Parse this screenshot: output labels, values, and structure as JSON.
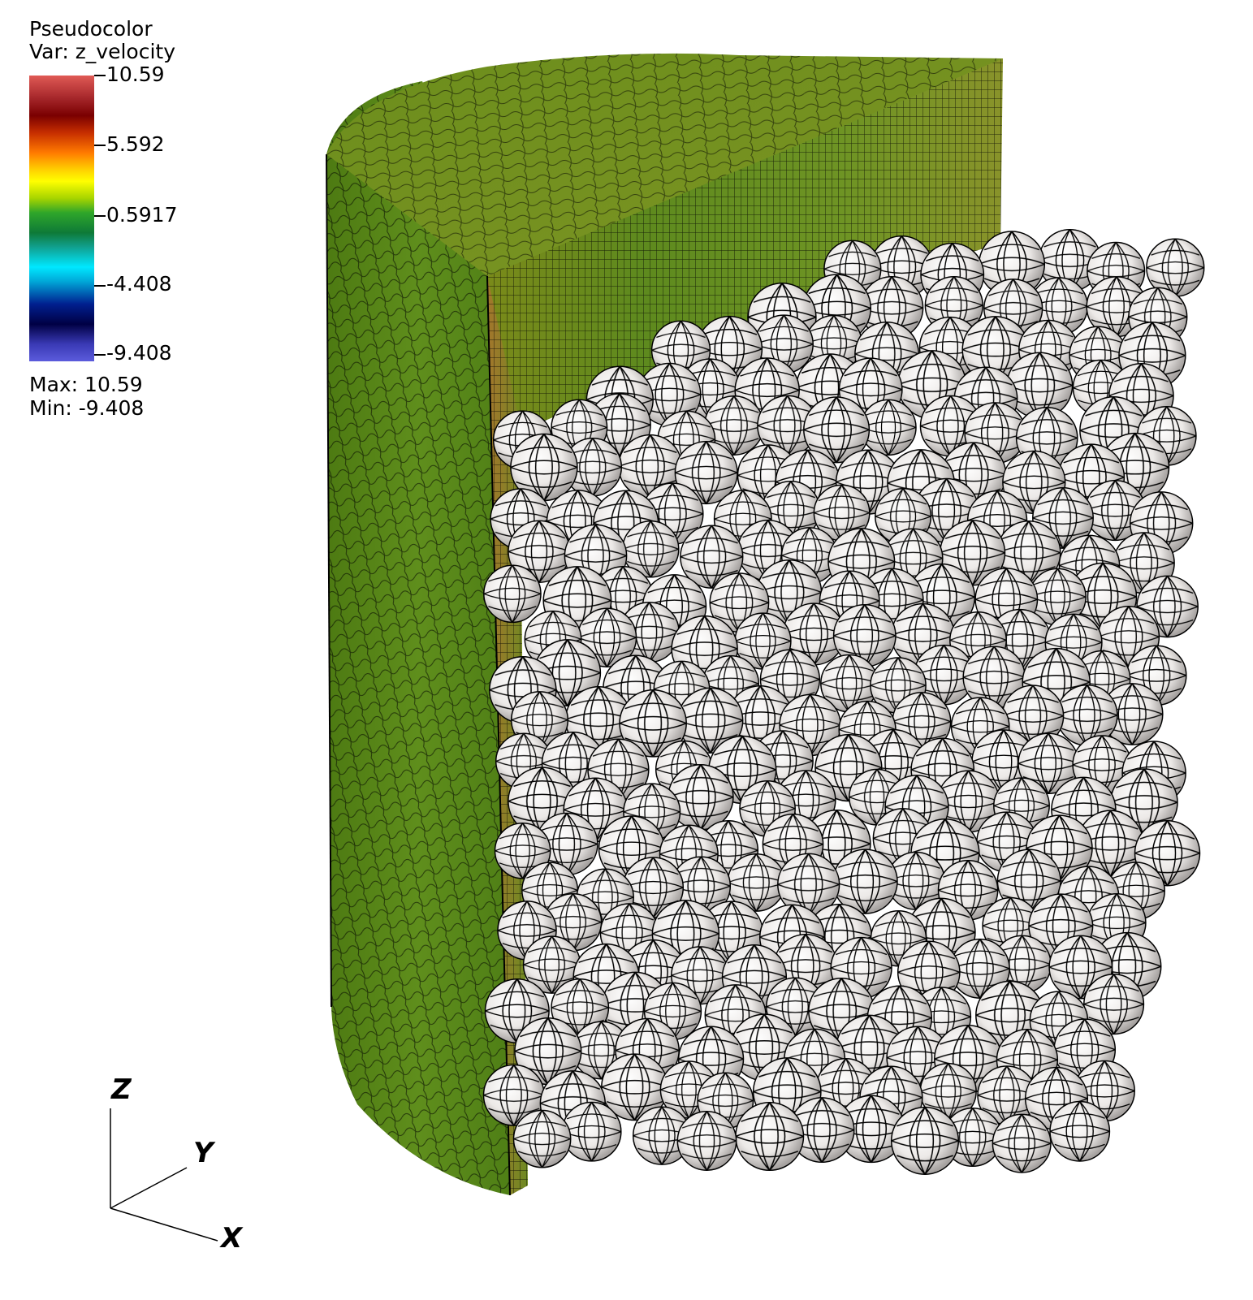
{
  "legend": {
    "plot_type": "Pseudocolor",
    "variable_label": "Var: z_velocity",
    "ticks": [
      "10.59",
      "5.592",
      "0.5917",
      "-4.408",
      "-9.408"
    ],
    "max_label": "Max:  10.59",
    "min_label": "Min: -9.408",
    "colors": [
      "#e05a55",
      "#7a0000",
      "#ff7a00",
      "#ffff00",
      "#2fa62a",
      "#00e8ff",
      "#000044",
      "#5b5bdc"
    ]
  },
  "axes": {
    "z": "Z",
    "y": "Y",
    "x": "X"
  },
  "scene": {
    "mesh_color": "#5a8a18",
    "sphere_color": "#f2f0ee",
    "grid_line_color": "#000000"
  }
}
